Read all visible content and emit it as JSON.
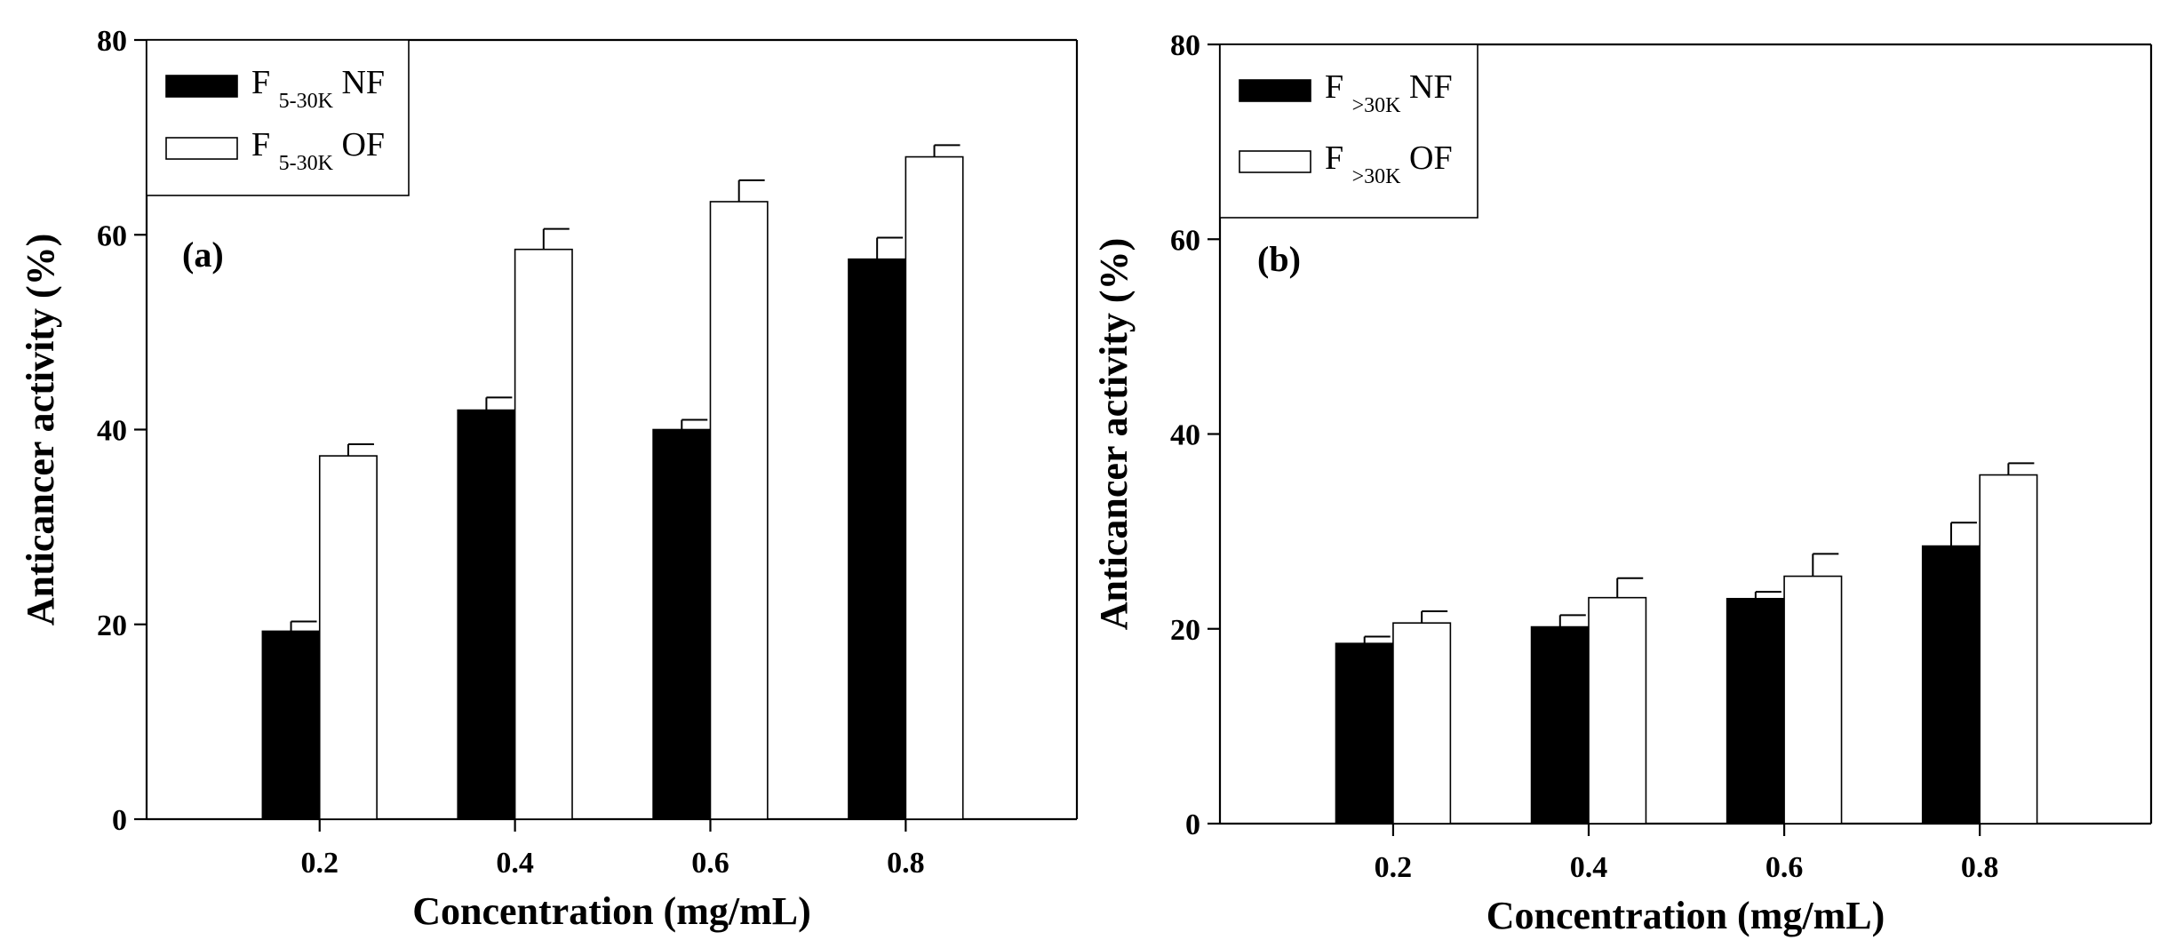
{
  "chart_data": [
    {
      "type": "bar",
      "panel_label": "(a)",
      "categories": [
        "0.2",
        "0.4",
        "0.6",
        "0.8"
      ],
      "xlabel": "Concentration (mg/mL)",
      "ylabel": "Anticancer activity (%)",
      "ylim": [
        0,
        80
      ],
      "yticks": [
        "0",
        "20",
        "40",
        "60",
        "80"
      ],
      "legend_position": "top-left",
      "series": [
        {
          "name": "F 5-30K NF",
          "prefix": "F ",
          "sub": "5-30K",
          "suffix": " NF",
          "fill": "#000000",
          "values": [
            19.3,
            42.0,
            40.0,
            57.5
          ],
          "errors": [
            1.0,
            1.3,
            1.0,
            2.2
          ]
        },
        {
          "name": "F 5-30K OF",
          "prefix": "F ",
          "sub": "5-30K",
          "suffix": " OF",
          "fill": "#ffffff",
          "values": [
            37.3,
            58.5,
            63.4,
            68.0
          ],
          "errors": [
            1.2,
            2.1,
            2.2,
            1.2
          ]
        }
      ]
    },
    {
      "type": "bar",
      "panel_label": "(b)",
      "categories": [
        "0.2",
        "0.4",
        "0.6",
        "0.8"
      ],
      "xlabel": "Concentration (mg/mL)",
      "ylabel": "Anticancer activity (%)",
      "ylim": [
        0,
        80
      ],
      "yticks": [
        "0",
        "20",
        "40",
        "60",
        "80"
      ],
      "legend_position": "top-left",
      "series": [
        {
          "name": "F >30K NF",
          "prefix": "F ",
          "sub": ">30K",
          "suffix": " NF",
          "fill": "#000000",
          "values": [
            18.5,
            20.2,
            23.1,
            28.5
          ],
          "errors": [
            0.7,
            1.2,
            0.7,
            2.4
          ]
        },
        {
          "name": "F >30K OF",
          "prefix": "F ",
          "sub": ">30K",
          "suffix": " OF",
          "fill": "#ffffff",
          "values": [
            20.6,
            23.2,
            25.4,
            35.8
          ],
          "errors": [
            1.2,
            2.0,
            2.3,
            1.2
          ]
        }
      ]
    }
  ]
}
